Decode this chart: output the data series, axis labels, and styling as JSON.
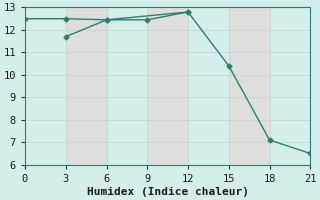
{
  "line1_x": [
    0,
    3,
    6,
    9,
    12
  ],
  "line1_y": [
    12.5,
    12.5,
    12.45,
    12.45,
    12.8
  ],
  "line2_x": [
    3,
    6,
    12,
    15,
    18,
    21
  ],
  "line2_y": [
    11.7,
    12.45,
    12.8,
    10.4,
    7.1,
    6.5
  ],
  "line_color": "#2e7d72",
  "bg_color": "#d4eeeb",
  "grid_color_major": "#c0dcd9",
  "grid_color_minor": "#e0f2f0",
  "xlabel": "Humidex (Indice chaleur)",
  "xlim": [
    0,
    21
  ],
  "ylim": [
    6,
    13
  ],
  "xticks": [
    0,
    3,
    6,
    9,
    12,
    15,
    18,
    21
  ],
  "yticks": [
    6,
    7,
    8,
    9,
    10,
    11,
    12,
    13
  ],
  "marker": "D",
  "markersize": 2.5,
  "linewidth": 1.0,
  "xlabel_fontsize": 8,
  "tick_fontsize": 7.5
}
